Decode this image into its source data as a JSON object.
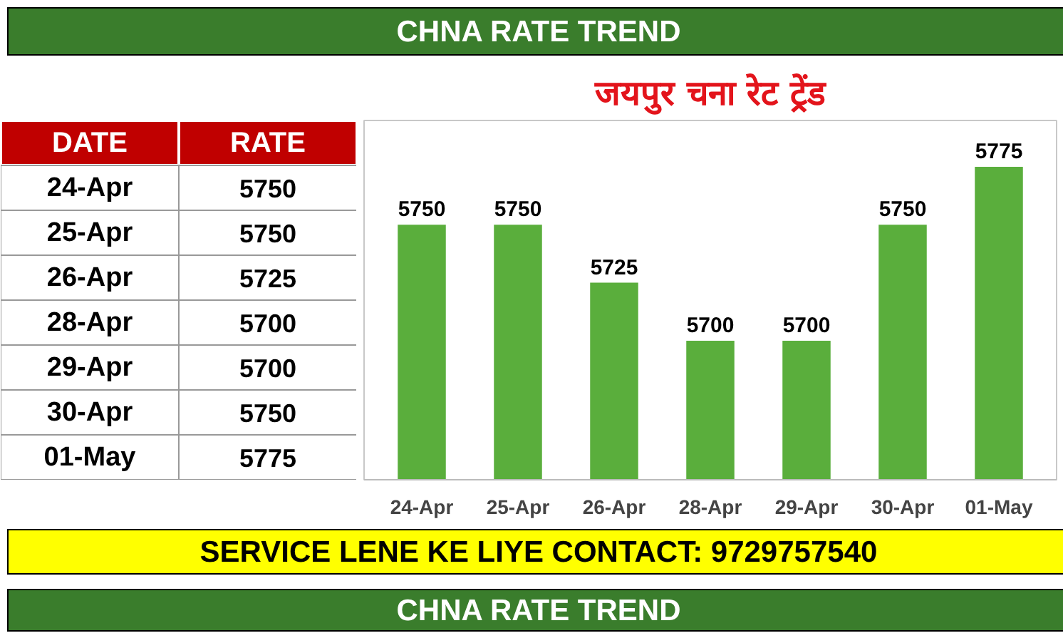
{
  "chart_data": {
    "type": "bar",
    "title": "जयपुर चना रेट ट्रेंड",
    "subtitle": "CHNA RATE TREND",
    "categories": [
      "24-Apr",
      "25-Apr",
      "26-Apr",
      "28-Apr",
      "29-Apr",
      "30-Apr",
      "01-May"
    ],
    "values": [
      5750,
      5750,
      5725,
      5700,
      5700,
      5750,
      5775
    ],
    "color": "#5aae3c",
    "ylim": [
      5640,
      5795
    ],
    "data_labels": true,
    "annotations": [
      "DATE",
      "RATE",
      "5750",
      "5750",
      "5725",
      "5700",
      "5700",
      "5750",
      "5775",
      "SERVICE LENE KE LIYE CONTACT: 9729757540",
      "CHNA RATE TREND"
    ]
  }
}
